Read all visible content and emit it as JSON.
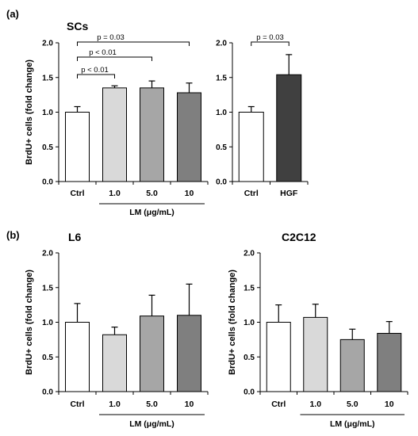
{
  "panels": {
    "a_label": "(a)",
    "b_label": "(b)"
  },
  "colors": {
    "Ctrl": "#ffffff",
    "1.0": "#d9d9d9",
    "5.0": "#a6a6a6",
    "10": "#7f7f7f",
    "HGF": "#404040",
    "stroke": "#000000"
  },
  "chart_data": [
    {
      "id": "scs-lm",
      "type": "bar",
      "title": "SCs",
      "ylabel": "BrdU+ cells (fold change)",
      "ylim": [
        0,
        2.0
      ],
      "yticks": [
        "0.0",
        "0.5",
        "1.0",
        "1.5",
        "2.0"
      ],
      "categories": [
        "Ctrl",
        "1.0",
        "5.0",
        "10"
      ],
      "values": [
        1.0,
        1.35,
        1.35,
        1.28
      ],
      "errors": [
        0.08,
        0.03,
        0.1,
        0.14
      ],
      "group_label": "LM (μg/mL)",
      "group_span": [
        1,
        3
      ],
      "annotations": [
        {
          "from": 0,
          "to": 1,
          "text": "p < 0.01"
        },
        {
          "from": 0,
          "to": 2,
          "text": "p < 0.01"
        },
        {
          "from": 0,
          "to": 3,
          "text": "p = 0.03"
        }
      ]
    },
    {
      "id": "scs-hgf",
      "type": "bar",
      "title": "",
      "ylabel": "",
      "ylim": [
        0,
        2.0
      ],
      "yticks": [
        "0.0",
        "0.5",
        "1.0",
        "1.5",
        "2.0"
      ],
      "categories": [
        "Ctrl",
        "HGF"
      ],
      "values": [
        1.0,
        1.54
      ],
      "errors": [
        0.08,
        0.29
      ],
      "annotations": [
        {
          "from": 0,
          "to": 1,
          "text": "p = 0.03"
        }
      ]
    },
    {
      "id": "l6",
      "type": "bar",
      "title": "L6",
      "ylabel": "BrdU+ cells (fold change)",
      "ylim": [
        0,
        2.0
      ],
      "yticks": [
        "0.0",
        "0.5",
        "1.0",
        "1.5",
        "2.0"
      ],
      "categories": [
        "Ctrl",
        "1.0",
        "5.0",
        "10"
      ],
      "values": [
        1.0,
        0.82,
        1.09,
        1.1
      ],
      "errors": [
        0.27,
        0.11,
        0.3,
        0.45
      ],
      "group_label": "LM (μg/mL)",
      "group_span": [
        1,
        3
      ],
      "annotations": []
    },
    {
      "id": "c2c12",
      "type": "bar",
      "title": "C2C12",
      "ylabel": "BrdU+ cells (fold change)",
      "ylim": [
        0,
        2.0
      ],
      "yticks": [
        "0.0",
        "0.5",
        "1.0",
        "1.5",
        "2.0"
      ],
      "categories": [
        "Ctrl",
        "1.0",
        "5.0",
        "10"
      ],
      "values": [
        1.0,
        1.07,
        0.75,
        0.84
      ],
      "errors": [
        0.25,
        0.19,
        0.15,
        0.17
      ],
      "group_label": "LM (μg/mL)",
      "group_span": [
        1,
        3
      ],
      "annotations": []
    }
  ]
}
